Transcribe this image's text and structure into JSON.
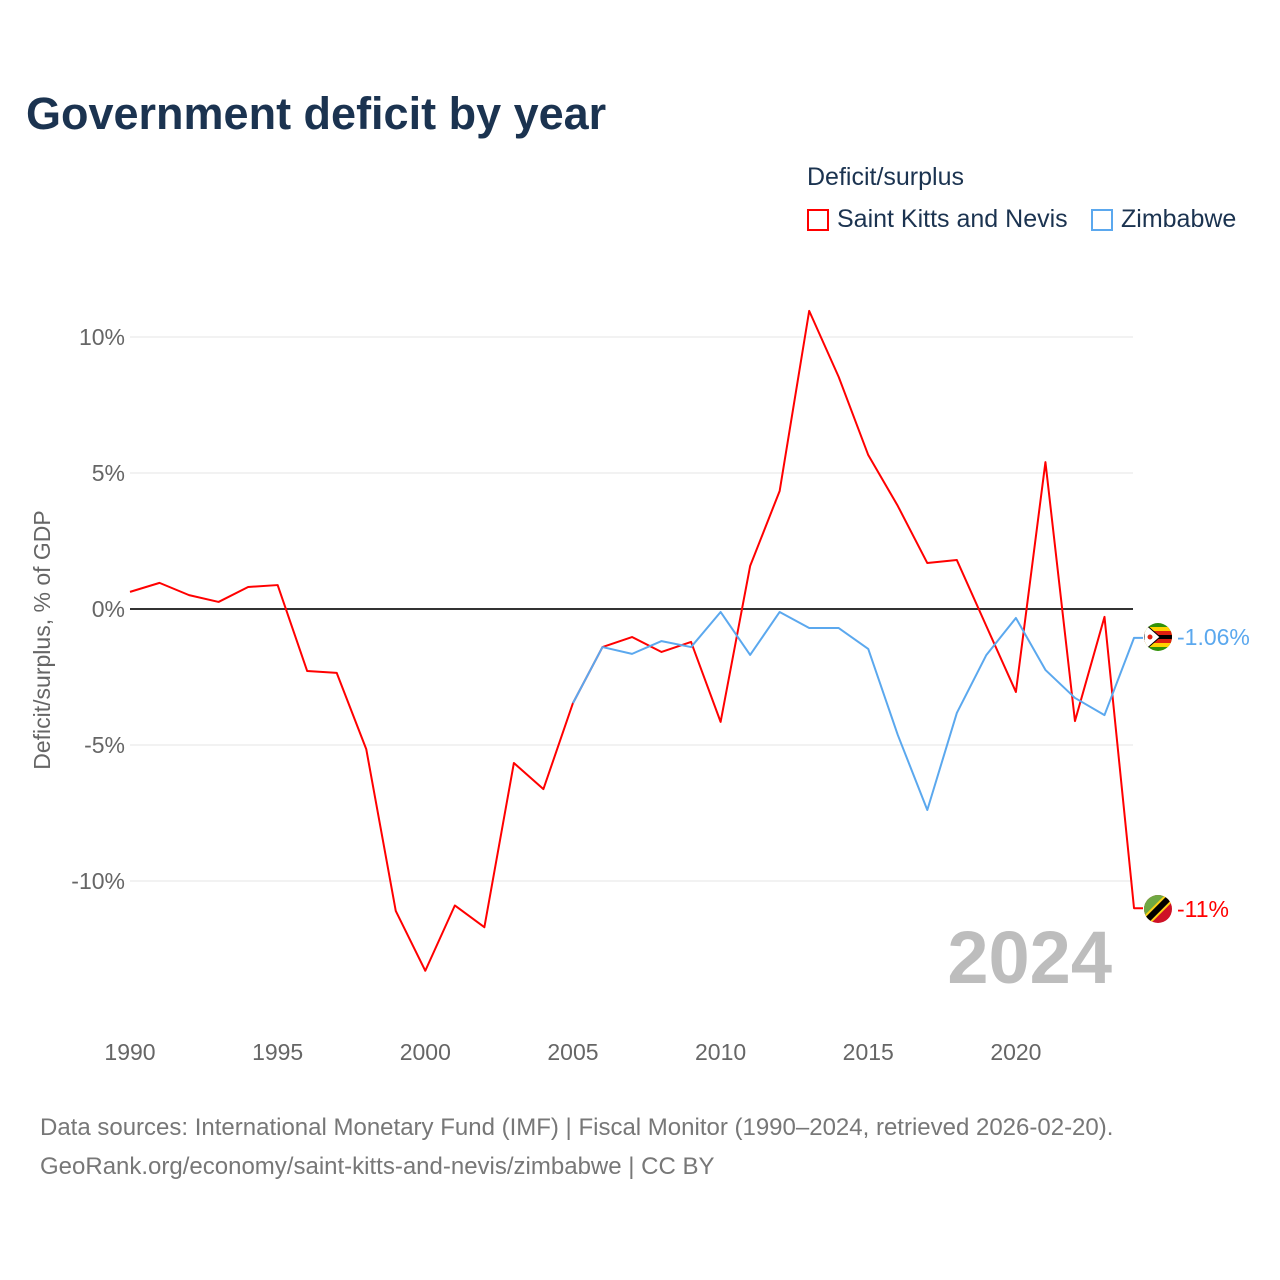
{
  "chart_data": {
    "type": "line",
    "title": "Government deficit by year",
    "ylabel": "Deficit/surplus, % of GDP",
    "xlabel": "",
    "legend_title": "Deficit/surplus",
    "legend_position": "top-right",
    "xlim": [
      1990,
      2024
    ],
    "ylim": [
      -14.5,
      11.5
    ],
    "x_ticks": [
      1990,
      1995,
      2000,
      2005,
      2010,
      2015,
      2020
    ],
    "x_tick_labels": [
      "1990",
      "1995",
      "2000",
      "2005",
      "2010",
      "2015",
      "2020"
    ],
    "y_ticks": [
      10,
      5,
      0,
      -5,
      -10
    ],
    "y_tick_labels": [
      "10%",
      "5%",
      "0%",
      "-5%",
      "-10%"
    ],
    "year_watermark": "2024",
    "series": [
      {
        "name": "Saint Kitts and Nevis",
        "color": "#ff0000",
        "end_label": "-11%",
        "x": [
          1990,
          1991,
          1992,
          1993,
          1994,
          1995,
          1996,
          1997,
          1998,
          1999,
          2000,
          2001,
          2002,
          2003,
          2004,
          2005,
          2006,
          2007,
          2008,
          2009,
          2010,
          2011,
          2012,
          2013,
          2014,
          2015,
          2016,
          2017,
          2018,
          2019,
          2020,
          2021,
          2022,
          2023,
          2024
        ],
        "values": [
          0.63,
          0.96,
          0.51,
          0.26,
          0.81,
          0.88,
          -2.28,
          -2.35,
          -5.15,
          -11.1,
          -13.3,
          -10.9,
          -11.7,
          -5.66,
          -6.62,
          -3.46,
          -1.4,
          -1.03,
          -1.58,
          -1.21,
          -4.15,
          1.58,
          4.34,
          10.96,
          8.53,
          5.66,
          3.79,
          1.69,
          1.8,
          -0.63,
          -3.05,
          5.4,
          -4.12,
          -0.29,
          -11.0
        ]
      },
      {
        "name": "Zimbabwe",
        "color": "#5ba8ee",
        "end_label": "-1.06%",
        "x": [
          2005,
          2006,
          2007,
          2008,
          2009,
          2010,
          2011,
          2012,
          2013,
          2014,
          2015,
          2016,
          2017,
          2018,
          2019,
          2020,
          2021,
          2022,
          2023,
          2024
        ],
        "values": [
          -3.46,
          -1.4,
          -1.65,
          -1.18,
          -1.4,
          -0.11,
          -1.69,
          -0.11,
          -0.7,
          -0.7,
          -1.47,
          -4.63,
          -7.39,
          -3.82,
          -1.69,
          -0.33,
          -2.24,
          -3.27,
          -3.9,
          -1.06
        ]
      }
    ]
  },
  "source": {
    "line1": "Data sources: International Monetary Fund (IMF) | Fiscal Monitor (1990–2024, retrieved 2026-02-20).",
    "line2": "GeoRank.org/economy/saint-kitts-and-nevis/zimbabwe | CC BY"
  }
}
